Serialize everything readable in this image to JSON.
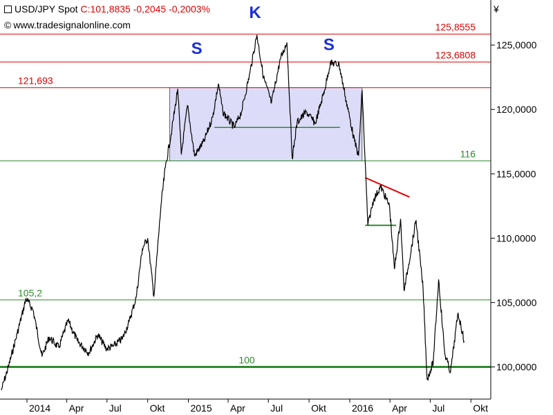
{
  "header": {
    "instrument": "USD/JPY Spot",
    "quote": "C:101,8835 -0,2045 -0,2003%",
    "website": "www.tradesignalonline.com"
  },
  "currency_symbol": "¥",
  "colors": {
    "price_line": "#000000",
    "resistance": "#e00000",
    "support": "#2e8b2e",
    "range_fill": "#dcdcf8",
    "annotation": "#1a2fd6"
  },
  "chart_data": {
    "type": "line",
    "x_axis": {
      "ticks": [
        "2014",
        "Apr",
        "Jul",
        "Okt",
        "2015",
        "Apr",
        "Jul",
        "Okt",
        "2016",
        "Apr",
        "Jul",
        "Okt"
      ],
      "range": [
        "2013-11-01",
        "2016-11-15"
      ]
    },
    "y_axis": {
      "range": [
        97.5,
        128.5
      ],
      "ticks": [
        "100,0000",
        "105,0000",
        "110,0000",
        "115,0000",
        "120,0000",
        "125,0000"
      ],
      "tick_values": [
        100,
        105,
        110,
        115,
        120,
        125
      ],
      "position": "right"
    },
    "series": [
      {
        "points": [
          [
            "2013-11-04",
            98.2
          ],
          [
            "2013-11-20",
            100.0
          ],
          [
            "2013-12-10",
            102.6
          ],
          [
            "2013-12-30",
            105.3
          ],
          [
            "2014-01-15",
            104.4
          ],
          [
            "2014-02-04",
            100.8
          ],
          [
            "2014-02-20",
            102.3
          ],
          [
            "2014-03-14",
            101.5
          ],
          [
            "2014-04-04",
            103.6
          ],
          [
            "2014-04-25",
            102.0
          ],
          [
            "2014-05-21",
            101.1
          ],
          [
            "2014-06-10",
            102.5
          ],
          [
            "2014-06-30",
            101.4
          ],
          [
            "2014-07-15",
            101.6
          ],
          [
            "2014-08-05",
            102.2
          ],
          [
            "2014-08-20",
            103.5
          ],
          [
            "2014-09-05",
            105.4
          ],
          [
            "2014-09-19",
            109.2
          ],
          [
            "2014-10-01",
            110.0
          ],
          [
            "2014-10-15",
            105.5
          ],
          [
            "2014-10-31",
            112.5
          ],
          [
            "2014-11-10",
            115.5
          ],
          [
            "2014-11-25",
            118.5
          ],
          [
            "2014-12-08",
            121.6
          ],
          [
            "2014-12-16",
            116.5
          ],
          [
            "2014-12-30",
            120.3
          ],
          [
            "2015-01-15",
            116.4
          ],
          [
            "2015-02-05",
            117.5
          ],
          [
            "2015-02-25",
            119.4
          ],
          [
            "2015-03-10",
            122.0
          ],
          [
            "2015-03-20",
            119.8
          ],
          [
            "2015-04-15",
            118.6
          ],
          [
            "2015-05-01",
            119.8
          ],
          [
            "2015-05-20",
            122.8
          ],
          [
            "2015-06-05",
            125.8
          ],
          [
            "2015-06-20",
            122.5
          ],
          [
            "2015-07-08",
            120.5
          ],
          [
            "2015-07-28",
            123.9
          ],
          [
            "2015-08-12",
            125.2
          ],
          [
            "2015-08-24",
            116.2
          ],
          [
            "2015-09-04",
            119.0
          ],
          [
            "2015-09-25",
            119.8
          ],
          [
            "2015-10-15",
            118.9
          ],
          [
            "2015-11-05",
            121.5
          ],
          [
            "2015-11-18",
            123.6
          ],
          [
            "2015-12-08",
            123.5
          ],
          [
            "2015-12-22",
            121.0
          ],
          [
            "2016-01-12",
            117.5
          ],
          [
            "2016-01-21",
            116.4
          ],
          [
            "2016-01-29",
            121.5
          ],
          [
            "2016-02-11",
            111.0
          ],
          [
            "2016-02-24",
            113.0
          ],
          [
            "2016-03-11",
            114.0
          ],
          [
            "2016-03-31",
            112.5
          ],
          [
            "2016-04-11",
            107.6
          ],
          [
            "2016-04-25",
            111.5
          ],
          [
            "2016-05-03",
            105.9
          ],
          [
            "2016-05-30",
            111.4
          ],
          [
            "2016-06-15",
            106.0
          ],
          [
            "2016-06-24",
            99.0
          ],
          [
            "2016-07-08",
            100.4
          ],
          [
            "2016-07-20",
            106.8
          ],
          [
            "2016-08-03",
            101.0
          ],
          [
            "2016-08-16",
            99.6
          ],
          [
            "2016-09-02",
            104.2
          ],
          [
            "2016-09-16",
            102.0
          ]
        ]
      }
    ],
    "horizontal_levels": [
      {
        "value": 125.8555,
        "label": "125,8555",
        "color": "#e00000",
        "label_side": "right"
      },
      {
        "value": 123.6808,
        "label": "123,6808",
        "color": "#e00000",
        "label_side": "right"
      },
      {
        "value": 121.693,
        "label": "121,693",
        "color": "#e00000",
        "label_side": "left"
      },
      {
        "value": 116,
        "label": "116",
        "color": "#2e8b2e",
        "label_side": "right"
      },
      {
        "value": 105.2,
        "label": "105,2",
        "color": "#2e8b2e",
        "label_side": "left"
      },
      {
        "value": 100,
        "label": "100",
        "color": "#2e8b2e",
        "label_side": "center",
        "thick": true
      }
    ],
    "shaded_range": {
      "x_start": "2014-11-20",
      "x_end": "2016-01-29",
      "y_low": 116,
      "y_high": 121.693
    },
    "neckline": {
      "x_start": "2015-03-01",
      "x_end": "2015-12-10",
      "y": 118.6
    },
    "trendlines": [
      {
        "x_start": "2016-02-05",
        "y_start": 114.7,
        "x_end": "2016-05-15",
        "y_end": 113.2,
        "color": "#e00000"
      },
      {
        "x_start": "2016-02-05",
        "y_start": 111.0,
        "x_end": "2016-04-15",
        "y_end": 111.0,
        "color": "#2e8b2e"
      }
    ],
    "annotations": [
      {
        "text": "S",
        "x": "2015-01-20",
        "y": 124.3
      },
      {
        "text": "K",
        "x": "2015-06-01",
        "y": 127.1
      },
      {
        "text": "S",
        "x": "2015-11-15",
        "y": 124.6
      }
    ]
  }
}
